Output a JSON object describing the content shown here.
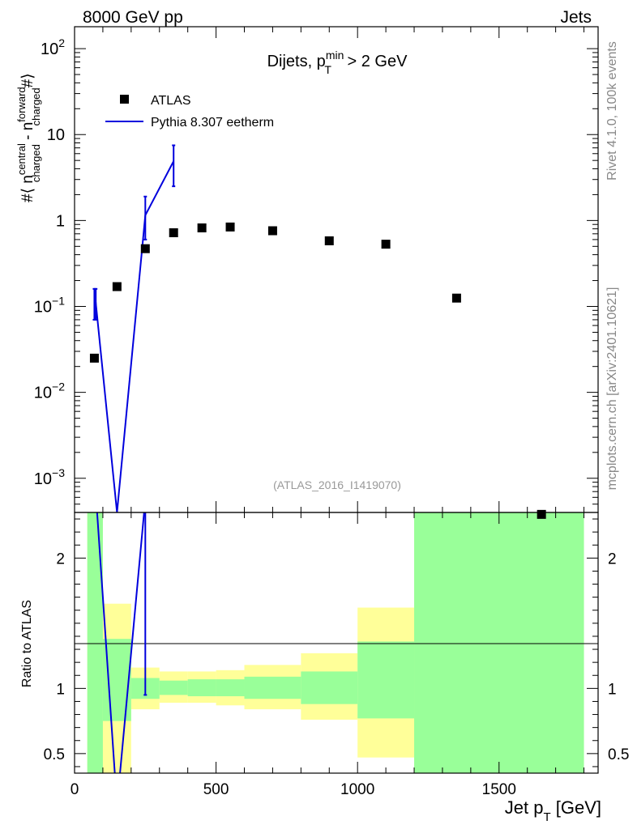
{
  "header": {
    "left": "8000 GeV pp",
    "right": "Jets"
  },
  "side_text": {
    "rivet": "Rivet 4.1.0,  100k events",
    "site": "mcplots.cern.ch [arXiv:2401.10621]"
  },
  "chart_data": [
    {
      "type": "scatter",
      "panel": "main",
      "title": "Dijets, p_T^min > 2 GeV",
      "title_parts": {
        "pre": "Dijets, p",
        "sub": "T",
        "sup": "min",
        "post": " > 2 GeV"
      },
      "ylabel": "#⟨ n_charged^central - n_charged^forward #⟩",
      "ylabel_parts": {
        "a": "#⟨ n",
        "sup1": "central",
        "sub1": "charged",
        "b": " - n",
        "sup2": "forward",
        "sub2": "charged",
        "c": "#⟩"
      },
      "yscale": "log",
      "ylim": [
        0.0004,
        180
      ],
      "xlim": [
        0,
        1850
      ],
      "y_ticks": [
        {
          "value": 0.001,
          "base": "10",
          "exp": "−3"
        },
        {
          "value": 0.01,
          "base": "10",
          "exp": "−2"
        },
        {
          "value": 0.1,
          "base": "10",
          "exp": "−1"
        },
        {
          "value": 1,
          "base": "1",
          "exp": ""
        },
        {
          "value": 10,
          "base": "10",
          "exp": ""
        },
        {
          "value": 100,
          "base": "10",
          "exp": "2"
        }
      ],
      "annotation": "(ATLAS_2016_I1419070)",
      "legend": [
        "ATLAS",
        "Pythia 8.307 eetherm"
      ],
      "series": [
        {
          "name": "ATLAS",
          "x": [
            70,
            150,
            250,
            350,
            450,
            550,
            700,
            900,
            1100,
            1350,
            1650
          ],
          "y": [
            0.025,
            0.17,
            0.47,
            0.72,
            0.82,
            0.84,
            0.76,
            0.58,
            0.53,
            0.125,
            0.00038
          ]
        },
        {
          "name": "Pythia 8.307 eetherm",
          "color": "#0000dd",
          "x": [
            70,
            75,
            150,
            250,
            350
          ],
          "y": [
            0.11,
            0.11,
            0.0004,
            1.15,
            4.9
          ],
          "yerr_low": [
            0.07,
            0.07,
            null,
            0.6,
            2.5
          ],
          "yerr_high": [
            0.16,
            0.16,
            null,
            1.9,
            7.5
          ]
        }
      ]
    },
    {
      "type": "line",
      "panel": "ratio",
      "ylabel": "Ratio to ATLAS",
      "xlabel": "Jet p_T [GeV]",
      "xlabel_parts": {
        "a": "Jet p",
        "sub": "T",
        "b": " [GeV]"
      },
      "ylim": [
        0.35,
        2.35
      ],
      "xlim": [
        0,
        1850
      ],
      "x_ticks": [
        0,
        500,
        1000,
        1500
      ],
      "x_tick_labels": [
        "0",
        "500",
        "1000",
        "1500"
      ],
      "y_ticks": [
        0.5,
        1,
        2
      ],
      "y_tick_labels": [
        "0.5",
        "1",
        "2"
      ],
      "colors": {
        "band_yellow": "#ffff99",
        "band_green": "#99ff99",
        "mc_line": "#0000dd"
      },
      "bands": [
        {
          "x0": 45,
          "x1": 100,
          "yellow": [
            0,
            9
          ],
          "green": [
            0,
            9
          ]
        },
        {
          "x0": 100,
          "x1": 200,
          "yellow": [
            0.35,
            1.65
          ],
          "green": [
            0.75,
            1.38
          ]
        },
        {
          "x0": 200,
          "x1": 300,
          "yellow": [
            0.84,
            1.16
          ],
          "green": [
            0.92,
            1.08
          ]
        },
        {
          "x0": 300,
          "x1": 400,
          "yellow": [
            0.89,
            1.13
          ],
          "green": [
            0.95,
            1.06
          ]
        },
        {
          "x0": 400,
          "x1": 500,
          "yellow": [
            0.89,
            1.13
          ],
          "green": [
            0.94,
            1.07
          ]
        },
        {
          "x0": 500,
          "x1": 600,
          "yellow": [
            0.87,
            1.14
          ],
          "green": [
            0.94,
            1.07
          ]
        },
        {
          "x0": 600,
          "x1": 800,
          "yellow": [
            0.84,
            1.18
          ],
          "green": [
            0.92,
            1.09
          ]
        },
        {
          "x0": 800,
          "x1": 1000,
          "yellow": [
            0.76,
            1.27
          ],
          "green": [
            0.88,
            1.13
          ]
        },
        {
          "x0": 1000,
          "x1": 1200,
          "yellow": [
            0.47,
            1.62
          ],
          "green": [
            0.77,
            1.36
          ]
        },
        {
          "x0": 1200,
          "x1": 1800,
          "yellow": [
            0,
            9
          ],
          "green": [
            0,
            9
          ]
        }
      ],
      "mc_ratio": {
        "x": [
          70,
          150,
          250
        ],
        "y": [
          5.0,
          0.1,
          2.45
        ]
      },
      "mc_ratio_err": [
        {
          "x": 250,
          "low": 0.95,
          "high": 2.5
        }
      ]
    }
  ]
}
